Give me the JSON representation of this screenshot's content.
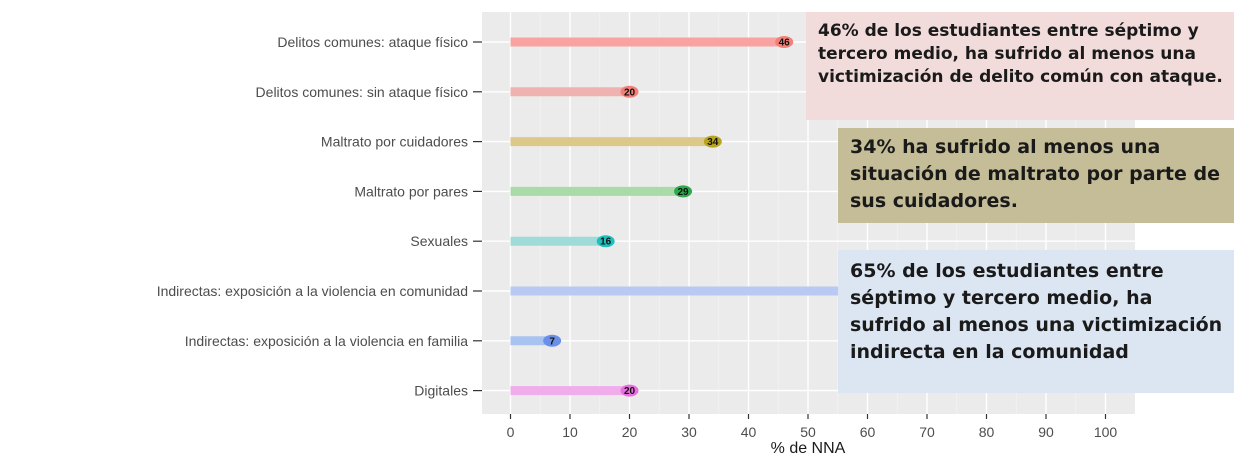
{
  "colors": {
    "panel_bg": "#ebebeb",
    "grid_major": "#ffffff",
    "grid_minor": "#f3f3f3"
  },
  "chart_data": {
    "type": "bar",
    "orientation": "horizontal",
    "style": "lollipop",
    "categories": [
      "Delitos comunes: ataque físico",
      "Delitos comunes: sin ataque físico",
      "Maltrato por cuidadores",
      "Maltrato por pares",
      "Sexuales",
      "Indirectas: exposición a la violencia en comunidad",
      "Indirectas: exposición a la violencia en familia",
      "Digitales"
    ],
    "values": [
      46,
      20,
      34,
      29,
      16,
      65,
      7,
      20
    ],
    "data_labels": [
      "46",
      "20",
      "34",
      "29",
      "16",
      "",
      "7",
      "20"
    ],
    "bar_colors": [
      "#f8a3a1",
      "#f0b2b0",
      "#dcc98a",
      "#a8dba8",
      "#9fdcd9",
      "#b9c9f3",
      "#a8c3f0",
      "#f1acec"
    ],
    "point_colors": [
      "#f27f78",
      "#f27f78",
      "#b8a41e",
      "#2ea84e",
      "#1fc0bc",
      "#7f9ef0",
      "#6a8fe8",
      "#e96ee0"
    ],
    "xlabel": "% de NNA",
    "ylabel": "",
    "xlim": [
      0,
      105
    ],
    "x_ticks": [
      0,
      10,
      20,
      30,
      40,
      50,
      60,
      70,
      80,
      90,
      100
    ],
    "grid": true,
    "legend": "none"
  },
  "callouts": [
    {
      "text": "46% de los estudiantes entre séptimo y tercero medio, ha sufrido al menos una victimización de delito común con  ataque.",
      "bg": "#f2dcdb"
    },
    {
      "text": "34% ha sufrido al menos una situación de maltrato por parte de sus cuidadores.",
      "bg": "#c4bd97"
    },
    {
      "text": "65% de los estudiantes entre séptimo y tercero medio, ha sufrido al menos una victimización indirecta en la comunidad",
      "bg": "#dce6f2"
    }
  ]
}
